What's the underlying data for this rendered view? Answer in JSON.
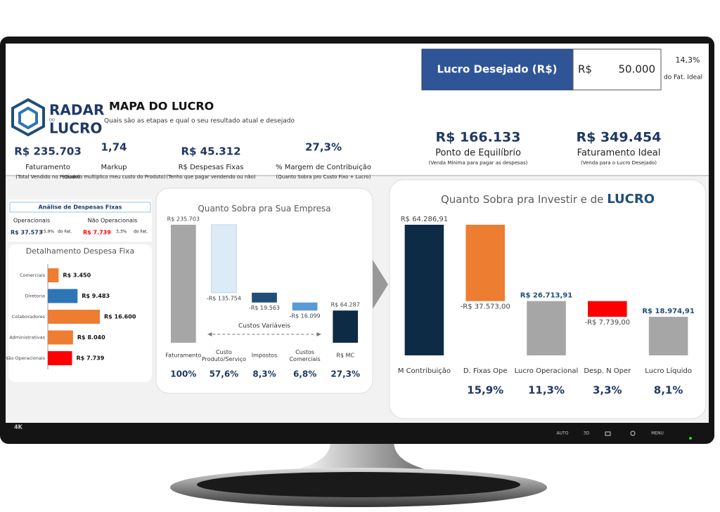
{
  "brand": {
    "line1": "RADAR",
    "line2": "DO",
    "line3": "LUCRO"
  },
  "header": {
    "title": "MAPA DO LUCRO",
    "subtitle": "Quais são as etapas e qual o seu resultado atual e desejado"
  },
  "desired_profit": {
    "label": "Lucro Desejado (R$)",
    "currency": "R$",
    "value": "50.000",
    "pct": "14,3%",
    "pct_note": "do Fat. Ideal"
  },
  "kpis": [
    {
      "value": "R$ 235.703",
      "label": "Faturamento",
      "note": "(Total Vendido no Período)"
    },
    {
      "value": "1,74",
      "label": "Markup",
      "note": "(Quanto multiplico meu custo do Produto)"
    },
    {
      "value": "R$ 45.312",
      "label": "R$ Despesas Fixas",
      "note": "(Tenho que pagar vendendo ou não)"
    },
    {
      "value": "27,3%",
      "label": "% Margem de Contribuição",
      "note": "(Quanto Sobra pro Custo Fixo + Lucro)"
    },
    {
      "value": "R$ 166.133",
      "label": "Ponto de Equilíbrio",
      "note": "(Venda Mínima para pagar as despesas)"
    },
    {
      "value": "R$ 349.454",
      "label": "Faturamento Ideal",
      "note": "(Venda para o Lucro Desejado)"
    }
  ],
  "expense_analysis": {
    "title": "Análise de Despesas Fixas",
    "items": [
      {
        "label": "Operacionais",
        "value": "R$ 37.573",
        "pct": "15,9%",
        "note": "do Fat."
      },
      {
        "label": "Não Operacionais",
        "value": "R$ 7.739",
        "pct": "3,3%",
        "note": "do Fat."
      }
    ]
  },
  "monitor": {
    "badge": "4K",
    "buttons": [
      "AUTO",
      "3D",
      "MENU"
    ]
  },
  "chart_data": [
    {
      "type": "hbar",
      "title": "Detalhamento  Despesa Fixa",
      "categories": [
        "Comerciais",
        "Diretoria",
        "Colaboradores",
        "Administrativas",
        "Não Operacionais"
      ],
      "values": [
        3450,
        9483,
        16600,
        8040,
        7739
      ],
      "value_labels": [
        "R$ 3.450",
        "R$ 9.483",
        "R$ 16.600",
        "R$ 8.040",
        "R$ 7.739"
      ],
      "colors": [
        "#ed7d31",
        "#2e75b6",
        "#ed7d31",
        "#ed7d31",
        "#ff0000"
      ]
    },
    {
      "type": "waterfall",
      "title": "Quanto Sobra pra Sua Empresa",
      "categories": [
        "Faturamento",
        "Custo Produto/Serviço",
        "Impostos",
        "Custos Comerciais",
        "R$ MC"
      ],
      "values": [
        235703,
        -135754,
        -19563,
        -16099,
        64287
      ],
      "value_labels": [
        "R$ 235.703",
        "-R$ 135.754",
        "-R$ 19.563",
        "-R$ 16.099",
        "R$ 64.287"
      ],
      "percent_labels": [
        "100%",
        "57,6%",
        "8,3%",
        "6,8%",
        "27,3%"
      ],
      "measure": [
        "absolute",
        "relative",
        "relative",
        "relative",
        "absolute"
      ],
      "colors": [
        "#a6a6a6",
        "#ddebf7",
        "#1f4e79",
        "#5b9bd5",
        "#0d2b45"
      ],
      "annotation": "Custos Variáveis"
    },
    {
      "type": "waterfall",
      "title": "Quanto Sobra pra Investir e de",
      "title_highlight": "LUCRO",
      "categories": [
        "M Contribuição",
        "D. Fixas Ope",
        "Lucro Operacional",
        "Desp. N Oper",
        "Lucro Líquido"
      ],
      "values": [
        64286.91,
        -37573,
        26713.91,
        -7739,
        18974.91
      ],
      "value_labels": [
        "R$ 64.286,91",
        "-R$ 37.573,00",
        "R$ 26.713,91",
        "-R$ 7.739,00",
        "R$ 18.974,91"
      ],
      "percent_labels": [
        null,
        "15,9%",
        "11,3%",
        "3,3%",
        "8,1%"
      ],
      "measure": [
        "absolute",
        "relative",
        "absolute",
        "relative",
        "absolute"
      ],
      "colors": [
        "#0d2b45",
        "#ed7d31",
        "#a6a6a6",
        "#ff0000",
        "#a6a6a6"
      ]
    }
  ]
}
